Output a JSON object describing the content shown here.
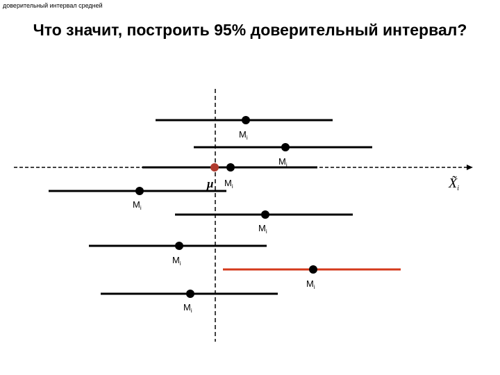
{
  "caption": "доверительный интервал средней",
  "title": "Что значит, построить 95% доверительный интервал?",
  "axis_label": "X̃",
  "axis_label_sub": "i",
  "mu_label": "μ",
  "interval_label": "M",
  "interval_label_sub": "i",
  "colors": {
    "interval": "#000000",
    "highlight": "#d4391b",
    "mu_point": "#b03a2e"
  },
  "intervals": [
    {
      "highlight": false
    },
    {
      "highlight": false
    },
    {
      "highlight": false
    },
    {
      "highlight": false
    },
    {
      "highlight": false
    },
    {
      "highlight": false
    },
    {
      "highlight": true
    },
    {
      "highlight": false
    }
  ]
}
